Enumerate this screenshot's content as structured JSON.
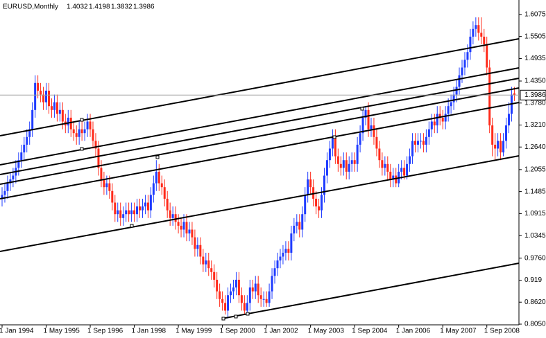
{
  "chart_data": {
    "type": "candlestick",
    "title": "EURUSD,Monthly",
    "up_color": "#1f3cff",
    "down_color": "#ff2a1a",
    "ylim": [
      0.805,
      1.645
    ],
    "yticks": [
      1.6075,
      1.5505,
      1.4935,
      {
        "value": 1.435,
        "label": "1.4350"
      },
      {
        "value": 1.378,
        "label": "1.3780"
      },
      {
        "value": 1.321,
        "label": "1.3210"
      },
      {
        "value": 1.264,
        "label": "1.2640"
      },
      1.2055,
      1.1485,
      1.0915,
      1.0345,
      {
        "value": 0.976,
        "label": "0.9760"
      },
      0.919,
      {
        "value": 0.862,
        "label": "0.8620"
      },
      {
        "value": 0.805,
        "label": "0.8050"
      }
    ],
    "categories": [
      "1 Jan 1994",
      null,
      null,
      null,
      null,
      null,
      null,
      null,
      null,
      null,
      null,
      null,
      null,
      null,
      null,
      null,
      "1 May 1995",
      null,
      null,
      null,
      null,
      null,
      null,
      null,
      null,
      null,
      null,
      null,
      null,
      null,
      null,
      null,
      "1 Sep 1996",
      null,
      null,
      null,
      null,
      null,
      null,
      null,
      null,
      null,
      null,
      null,
      null,
      null,
      null,
      null,
      "1 Jan 1998",
      null,
      null,
      null,
      null,
      null,
      null,
      null,
      null,
      null,
      null,
      null,
      null,
      null,
      null,
      null,
      "1 May 1999",
      null,
      null,
      null,
      null,
      null,
      null,
      null,
      null,
      null,
      null,
      null,
      null,
      null,
      null,
      null,
      "1 Sep 2000",
      null,
      null,
      null,
      null,
      null,
      null,
      null,
      null,
      null,
      null,
      null,
      null,
      null,
      null,
      null,
      "1 Jan 2002",
      null,
      null,
      null,
      null,
      null,
      null,
      null,
      null,
      null,
      null,
      null,
      null,
      null,
      null,
      null,
      "1 May 2003",
      null,
      null,
      null,
      null,
      null,
      null,
      null,
      null,
      null,
      null,
      null,
      null,
      null,
      null,
      null,
      "1 Sep 2004",
      null,
      null,
      null,
      null,
      null,
      null,
      null,
      null,
      null,
      null,
      null,
      null,
      null,
      null,
      null,
      "1 Jan 2006",
      null,
      null,
      null,
      null,
      null,
      null,
      null,
      null,
      null,
      null,
      null,
      null,
      null,
      null,
      null,
      "1 May 2007",
      null,
      null,
      null,
      null,
      null,
      null,
      null,
      null,
      null,
      null,
      null,
      null,
      null,
      null,
      null,
      "1 Sep 2008",
      null,
      null,
      null,
      null,
      null,
      null,
      null,
      null,
      null,
      null
    ],
    "candles": [
      [
        1.13,
        1.16,
        1.11,
        1.14
      ],
      [
        1.14,
        1.17,
        1.12,
        1.15
      ],
      [
        1.15,
        1.19,
        1.13,
        1.17
      ],
      [
        1.17,
        1.2,
        1.15,
        1.18
      ],
      [
        1.18,
        1.21,
        1.16,
        1.19
      ],
      [
        1.19,
        1.23,
        1.17,
        1.21
      ],
      [
        1.21,
        1.25,
        1.19,
        1.23
      ],
      [
        1.23,
        1.27,
        1.21,
        1.25
      ],
      [
        1.25,
        1.29,
        1.23,
        1.27
      ],
      [
        1.27,
        1.31,
        1.25,
        1.29
      ],
      [
        1.29,
        1.33,
        1.27,
        1.31
      ],
      [
        1.31,
        1.38,
        1.29,
        1.36
      ],
      [
        1.36,
        1.45,
        1.34,
        1.43
      ],
      [
        1.43,
        1.45,
        1.39,
        1.41
      ],
      [
        1.41,
        1.43,
        1.38,
        1.4
      ],
      [
        1.4,
        1.42,
        1.36,
        1.38
      ],
      [
        1.38,
        1.43,
        1.36,
        1.41
      ],
      [
        1.41,
        1.43,
        1.35,
        1.37
      ],
      [
        1.37,
        1.39,
        1.34,
        1.36
      ],
      [
        1.36,
        1.4,
        1.34,
        1.38
      ],
      [
        1.38,
        1.4,
        1.33,
        1.35
      ],
      [
        1.35,
        1.38,
        1.33,
        1.36
      ],
      [
        1.36,
        1.38,
        1.31,
        1.33
      ],
      [
        1.33,
        1.35,
        1.3,
        1.32
      ],
      [
        1.32,
        1.36,
        1.3,
        1.34
      ],
      [
        1.34,
        1.36,
        1.29,
        1.31
      ],
      [
        1.31,
        1.33,
        1.28,
        1.3
      ],
      [
        1.3,
        1.32,
        1.27,
        1.29
      ],
      [
        1.29,
        1.33,
        1.27,
        1.31
      ],
      [
        1.31,
        1.33,
        1.28,
        1.3
      ],
      [
        1.3,
        1.33,
        1.28,
        1.31
      ],
      [
        1.31,
        1.35,
        1.29,
        1.33
      ],
      [
        1.33,
        1.35,
        1.29,
        1.31
      ],
      [
        1.31,
        1.33,
        1.26,
        1.28
      ],
      [
        1.28,
        1.3,
        1.24,
        1.26
      ],
      [
        1.26,
        1.28,
        1.19,
        1.21
      ],
      [
        1.21,
        1.23,
        1.16,
        1.18
      ],
      [
        1.18,
        1.2,
        1.14,
        1.16
      ],
      [
        1.16,
        1.19,
        1.14,
        1.17
      ],
      [
        1.17,
        1.19,
        1.13,
        1.15
      ],
      [
        1.15,
        1.17,
        1.1,
        1.12
      ],
      [
        1.12,
        1.14,
        1.07,
        1.09
      ],
      [
        1.09,
        1.12,
        1.07,
        1.1
      ],
      [
        1.1,
        1.12,
        1.06,
        1.08
      ],
      [
        1.08,
        1.11,
        1.06,
        1.09
      ],
      [
        1.09,
        1.12,
        1.07,
        1.1
      ],
      [
        1.1,
        1.12,
        1.07,
        1.09
      ],
      [
        1.09,
        1.12,
        1.07,
        1.1
      ],
      [
        1.1,
        1.12,
        1.07,
        1.09
      ],
      [
        1.09,
        1.13,
        1.07,
        1.11
      ],
      [
        1.11,
        1.13,
        1.08,
        1.1
      ],
      [
        1.1,
        1.13,
        1.08,
        1.11
      ],
      [
        1.11,
        1.14,
        1.09,
        1.12
      ],
      [
        1.12,
        1.14,
        1.08,
        1.1
      ],
      [
        1.1,
        1.16,
        1.08,
        1.14
      ],
      [
        1.14,
        1.19,
        1.12,
        1.17
      ],
      [
        1.17,
        1.23,
        1.15,
        1.2
      ],
      [
        1.2,
        1.22,
        1.15,
        1.17
      ],
      [
        1.17,
        1.19,
        1.14,
        1.16
      ],
      [
        1.16,
        1.18,
        1.11,
        1.13
      ],
      [
        1.13,
        1.15,
        1.08,
        1.1
      ],
      [
        1.1,
        1.12,
        1.06,
        1.08
      ],
      [
        1.08,
        1.11,
        1.06,
        1.09
      ],
      [
        1.09,
        1.11,
        1.05,
        1.07
      ],
      [
        1.07,
        1.09,
        1.04,
        1.06
      ],
      [
        1.06,
        1.08,
        1.03,
        1.05
      ],
      [
        1.05,
        1.09,
        1.03,
        1.07
      ],
      [
        1.07,
        1.09,
        1.02,
        1.04
      ],
      [
        1.04,
        1.07,
        1.02,
        1.05
      ],
      [
        1.05,
        1.07,
        1.01,
        1.03
      ],
      [
        1.03,
        1.05,
        0.98,
        1.0
      ],
      [
        1.0,
        1.03,
        0.98,
        1.01
      ],
      [
        1.01,
        1.03,
        0.96,
        0.98
      ],
      [
        0.98,
        1.0,
        0.94,
        0.96
      ],
      [
        0.96,
        0.99,
        0.94,
        0.97
      ],
      [
        0.97,
        0.99,
        0.93,
        0.95
      ],
      [
        0.95,
        0.97,
        0.92,
        0.94
      ],
      [
        0.94,
        0.96,
        0.9,
        0.92
      ],
      [
        0.92,
        0.94,
        0.87,
        0.89
      ],
      [
        0.89,
        0.91,
        0.85,
        0.87
      ],
      [
        0.87,
        0.89,
        0.84,
        0.86
      ],
      [
        0.86,
        0.88,
        0.83,
        0.84
      ],
      [
        0.84,
        0.9,
        0.82,
        0.88
      ],
      [
        0.88,
        0.91,
        0.86,
        0.89
      ],
      [
        0.89,
        0.92,
        0.87,
        0.9
      ],
      [
        0.9,
        0.94,
        0.88,
        0.92
      ],
      [
        0.92,
        0.94,
        0.86,
        0.88
      ],
      [
        0.88,
        0.9,
        0.84,
        0.86
      ],
      [
        0.86,
        0.88,
        0.83,
        0.84
      ],
      [
        0.84,
        0.88,
        0.83,
        0.86
      ],
      [
        0.86,
        0.92,
        0.84,
        0.9
      ],
      [
        0.9,
        0.92,
        0.87,
        0.89
      ],
      [
        0.89,
        0.93,
        0.87,
        0.91
      ],
      [
        0.91,
        0.93,
        0.86,
        0.88
      ],
      [
        0.88,
        0.9,
        0.85,
        0.87
      ],
      [
        0.87,
        0.89,
        0.85,
        0.87
      ],
      [
        0.87,
        0.89,
        0.85,
        0.86
      ],
      [
        0.86,
        0.91,
        0.85,
        0.89
      ],
      [
        0.89,
        0.95,
        0.87,
        0.93
      ],
      [
        0.93,
        0.97,
        0.91,
        0.95
      ],
      [
        0.95,
        0.99,
        0.93,
        0.97
      ],
      [
        0.97,
        1.0,
        0.95,
        0.98
      ],
      [
        0.98,
        1.01,
        0.96,
        0.99
      ],
      [
        0.99,
        1.02,
        0.97,
        1.0
      ],
      [
        1.0,
        1.02,
        0.97,
        0.99
      ],
      [
        0.99,
        1.06,
        0.97,
        1.04
      ],
      [
        1.04,
        1.08,
        1.02,
        1.06
      ],
      [
        1.06,
        1.09,
        1.04,
        1.07
      ],
      [
        1.07,
        1.09,
        1.03,
        1.05
      ],
      [
        1.05,
        1.11,
        1.03,
        1.09
      ],
      [
        1.09,
        1.16,
        1.07,
        1.14
      ],
      [
        1.14,
        1.2,
        1.12,
        1.18
      ],
      [
        1.18,
        1.2,
        1.14,
        1.16
      ],
      [
        1.16,
        1.18,
        1.11,
        1.13
      ],
      [
        1.13,
        1.15,
        1.09,
        1.11
      ],
      [
        1.11,
        1.13,
        1.08,
        1.1
      ],
      [
        1.1,
        1.16,
        1.08,
        1.14
      ],
      [
        1.14,
        1.21,
        1.12,
        1.19
      ],
      [
        1.19,
        1.25,
        1.17,
        1.23
      ],
      [
        1.23,
        1.28,
        1.21,
        1.26
      ],
      [
        1.26,
        1.31,
        1.24,
        1.29
      ],
      [
        1.29,
        1.31,
        1.22,
        1.24
      ],
      [
        1.24,
        1.26,
        1.2,
        1.22
      ],
      [
        1.22,
        1.24,
        1.19,
        1.21
      ],
      [
        1.21,
        1.25,
        1.19,
        1.23
      ],
      [
        1.23,
        1.25,
        1.18,
        1.2
      ],
      [
        1.2,
        1.24,
        1.18,
        1.22
      ],
      [
        1.22,
        1.25,
        1.2,
        1.23
      ],
      [
        1.23,
        1.25,
        1.2,
        1.22
      ],
      [
        1.22,
        1.29,
        1.2,
        1.27
      ],
      [
        1.27,
        1.32,
        1.25,
        1.3
      ],
      [
        1.3,
        1.36,
        1.28,
        1.34
      ],
      [
        1.34,
        1.37,
        1.32,
        1.36
      ],
      [
        1.36,
        1.38,
        1.29,
        1.31
      ],
      [
        1.31,
        1.34,
        1.29,
        1.32
      ],
      [
        1.32,
        1.34,
        1.27,
        1.29
      ],
      [
        1.29,
        1.31,
        1.24,
        1.26
      ],
      [
        1.26,
        1.28,
        1.21,
        1.23
      ],
      [
        1.23,
        1.25,
        1.19,
        1.21
      ],
      [
        1.21,
        1.24,
        1.19,
        1.22
      ],
      [
        1.22,
        1.24,
        1.18,
        1.2
      ],
      [
        1.2,
        1.22,
        1.16,
        1.18
      ],
      [
        1.18,
        1.21,
        1.16,
        1.19
      ],
      [
        1.19,
        1.21,
        1.16,
        1.17
      ],
      [
        1.17,
        1.22,
        1.16,
        1.2
      ],
      [
        1.2,
        1.23,
        1.18,
        1.21
      ],
      [
        1.21,
        1.23,
        1.18,
        1.19
      ],
      [
        1.19,
        1.24,
        1.18,
        1.22
      ],
      [
        1.22,
        1.26,
        1.2,
        1.24
      ],
      [
        1.24,
        1.3,
        1.22,
        1.28
      ],
      [
        1.28,
        1.3,
        1.25,
        1.27
      ],
      [
        1.27,
        1.3,
        1.25,
        1.28
      ],
      [
        1.28,
        1.3,
        1.26,
        1.28
      ],
      [
        1.28,
        1.3,
        1.25,
        1.27
      ],
      [
        1.27,
        1.31,
        1.25,
        1.29
      ],
      [
        1.29,
        1.33,
        1.27,
        1.31
      ],
      [
        1.31,
        1.35,
        1.29,
        1.33
      ],
      [
        1.33,
        1.35,
        1.3,
        1.32
      ],
      [
        1.32,
        1.37,
        1.3,
        1.35
      ],
      [
        1.35,
        1.37,
        1.32,
        1.34
      ],
      [
        1.34,
        1.36,
        1.31,
        1.33
      ],
      [
        1.33,
        1.37,
        1.31,
        1.35
      ],
      [
        1.35,
        1.39,
        1.33,
        1.37
      ],
      [
        1.37,
        1.4,
        1.35,
        1.38
      ],
      [
        1.38,
        1.42,
        1.36,
        1.4
      ],
      [
        1.4,
        1.44,
        1.38,
        1.42
      ],
      [
        1.42,
        1.47,
        1.4,
        1.45
      ],
      [
        1.45,
        1.49,
        1.43,
        1.47
      ],
      [
        1.47,
        1.51,
        1.45,
        1.49
      ],
      [
        1.49,
        1.53,
        1.47,
        1.51
      ],
      [
        1.51,
        1.57,
        1.49,
        1.55
      ],
      [
        1.55,
        1.59,
        1.53,
        1.57
      ],
      [
        1.57,
        1.6,
        1.55,
        1.58
      ],
      [
        1.58,
        1.6,
        1.54,
        1.56
      ],
      [
        1.56,
        1.6,
        1.53,
        1.55
      ],
      [
        1.55,
        1.57,
        1.51,
        1.53
      ],
      [
        1.53,
        1.55,
        1.45,
        1.47
      ],
      [
        1.47,
        1.49,
        1.3,
        1.32
      ],
      [
        1.32,
        1.34,
        1.24,
        1.27
      ],
      [
        1.27,
        1.3,
        1.23,
        1.26
      ],
      [
        1.26,
        1.3,
        1.24,
        1.28
      ],
      [
        1.28,
        1.3,
        1.23,
        1.25
      ],
      [
        1.25,
        1.3,
        1.24,
        1.28
      ],
      [
        1.28,
        1.34,
        1.26,
        1.32
      ],
      [
        1.32,
        1.38,
        1.3,
        1.35
      ],
      [
        1.35,
        1.42,
        1.33,
        1.4
      ],
      [
        1.4032,
        1.4198,
        1.3832,
        1.3986
      ]
    ]
  }
}
